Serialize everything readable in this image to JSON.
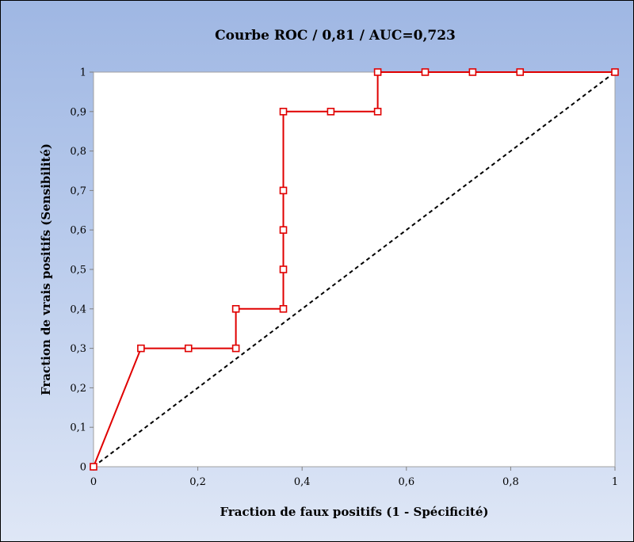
{
  "chart_data": {
    "type": "line",
    "title": "Courbe ROC / 0,81 / AUC=0,723",
    "xlabel": "Fraction de faux positifs (1 - Spécificité)",
    "ylabel": "Fraction de vrais positifs (Sensibilité)",
    "xlim": [
      0,
      1
    ],
    "ylim": [
      0,
      1
    ],
    "grid": false,
    "legend": "none",
    "x_ticks": [
      "0",
      "0,2",
      "0,4",
      "0,6",
      "0,8",
      "1"
    ],
    "y_ticks": [
      "0",
      "0,1",
      "0,2",
      "0,3",
      "0,4",
      "0,5",
      "0,6",
      "0,7",
      "0,8",
      "0,9",
      "1"
    ],
    "series": [
      {
        "color": "#e00000",
        "marker": "square",
        "x": [
          0,
          0.091,
          0.182,
          0.273,
          0.273,
          0.364,
          0.364,
          0.364,
          0.364,
          0.364,
          0.455,
          0.545,
          0.545,
          0.636,
          0.727,
          0.818,
          1.0
        ],
        "y": [
          0,
          0.3,
          0.3,
          0.3,
          0.4,
          0.4,
          0.5,
          0.6,
          0.7,
          0.9,
          0.9,
          0.9,
          1.0,
          1.0,
          1.0,
          1.0,
          1.0
        ]
      },
      {
        "color": "#000000",
        "style": "dashed",
        "x": [
          0,
          1
        ],
        "y": [
          0,
          1
        ]
      }
    ]
  }
}
